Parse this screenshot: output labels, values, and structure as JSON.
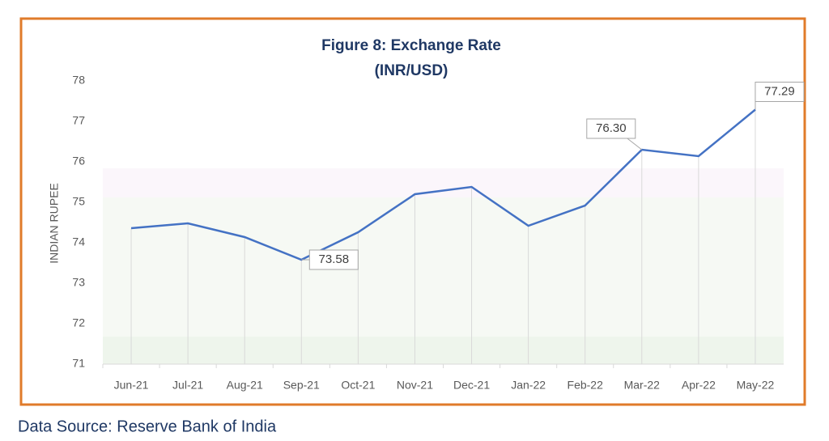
{
  "chart_data": {
    "type": "line",
    "title": "Figure 8: Exchange Rate",
    "subtitle": "(INR/USD)",
    "y_label": "INDIAN RUPEE",
    "source": "Data Source: Reserve Bank of India",
    "categories": [
      "Jun-21",
      "Jul-21",
      "Aug-21",
      "Sep-21",
      "Oct-21",
      "Nov-21",
      "Dec-21",
      "Jan-22",
      "Feb-22",
      "Mar-22",
      "Apr-22",
      "May-22"
    ],
    "values": [
      74.36,
      74.48,
      74.14,
      73.58,
      74.26,
      75.2,
      75.38,
      74.42,
      74.92,
      76.3,
      76.14,
      77.29
    ],
    "value_labels": [
      null,
      null,
      null,
      "73.58",
      null,
      null,
      null,
      null,
      null,
      "76.30",
      null,
      "77.29"
    ],
    "color": "#4472c4",
    "ylim": [
      71,
      78
    ],
    "yticks": [
      71,
      72,
      73,
      74,
      75,
      76,
      77,
      78
    ]
  }
}
